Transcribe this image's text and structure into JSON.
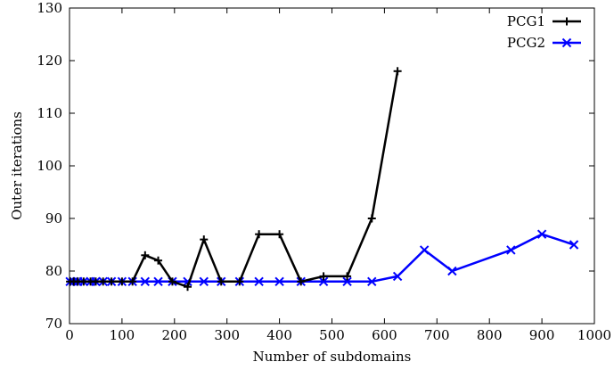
{
  "chart_data": {
    "type": "line",
    "xlabel": "Number of subdomains",
    "ylabel": "Outer iterations",
    "xlim": [
      0,
      1000
    ],
    "ylim": [
      70,
      130
    ],
    "xticks": [
      0,
      100,
      200,
      300,
      400,
      500,
      600,
      700,
      800,
      900,
      1000
    ],
    "yticks": [
      70,
      80,
      90,
      100,
      110,
      120,
      130
    ],
    "grid": false,
    "legend_position": "top-right",
    "series": [
      {
        "name": "PCG1",
        "color": "#000000",
        "marker": "plus",
        "x": [
          1,
          8,
          16,
          27,
          40,
          50,
          64,
          80,
          100,
          120,
          144,
          169,
          196,
          225,
          256,
          289,
          324,
          361,
          400,
          441,
          484,
          529,
          576,
          625
        ],
        "y": [
          78,
          78,
          78,
          78,
          78,
          78,
          78,
          78,
          78,
          78,
          83,
          82,
          78,
          77,
          86,
          78,
          78,
          87,
          87,
          78,
          79,
          79,
          90,
          118
        ]
      },
      {
        "name": "PCG2",
        "color": "#0000ff",
        "marker": "cross",
        "x": [
          1,
          8,
          16,
          27,
          40,
          50,
          64,
          80,
          100,
          120,
          144,
          169,
          196,
          225,
          256,
          289,
          324,
          361,
          400,
          441,
          484,
          529,
          576,
          625,
          676,
          729,
          841,
          900,
          961
        ],
        "y": [
          78,
          78,
          78,
          78,
          78,
          78,
          78,
          78,
          78,
          78,
          78,
          78,
          78,
          78,
          78,
          78,
          78,
          78,
          78,
          78,
          78,
          78,
          78,
          79,
          84,
          80,
          84,
          87,
          85
        ]
      }
    ]
  }
}
